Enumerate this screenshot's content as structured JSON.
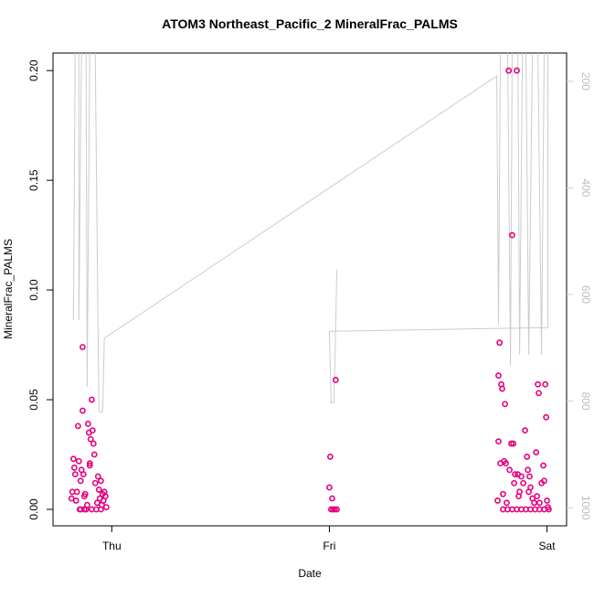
{
  "chart_data": {
    "type": "scatter",
    "title": "ATOM3 Northeast_Pacific_2 MineralFrac_PALMS",
    "xlabel": "Date",
    "ylabel": "MineralFrac_PALMS",
    "color": "#e6007e",
    "x": [
      -0.185,
      -0.181,
      -0.176,
      -0.172,
      -0.168,
      -0.164,
      -0.16,
      -0.155,
      -0.151,
      -0.147,
      -0.143,
      -0.139,
      -0.134,
      -0.134,
      -0.13,
      -0.126,
      -0.122,
      -0.118,
      -0.113,
      -0.109,
      -0.105,
      -0.101,
      -0.101,
      -0.097,
      -0.092,
      -0.088,
      -0.084,
      -0.08,
      -0.076,
      -0.071,
      -0.067,
      -0.063,
      -0.059,
      -0.055,
      -0.05,
      -0.046,
      -0.042,
      -0.038,
      -0.034,
      -0.029,
      -0.025,
      -0.143,
      -0.126,
      -0.092,
      -0.05,
      1.0,
      1.004,
      1.008,
      1.013,
      1.017,
      1.025,
      1.029,
      1.034,
      1.773,
      1.777,
      1.782,
      1.777,
      1.786,
      1.79,
      1.794,
      1.798,
      1.803,
      1.807,
      1.811,
      1.815,
      1.824,
      1.828,
      1.836,
      1.84,
      1.845,
      1.849,
      1.853,
      1.861,
      1.866,
      1.87,
      1.874,
      1.882,
      1.891,
      1.899,
      1.908,
      1.912,
      1.916,
      1.92,
      1.924,
      1.933,
      1.941,
      1.95,
      1.954,
      1.958,
      1.962,
      1.966,
      1.975,
      1.983,
      1.987,
      1.992,
      1.996,
      2.0,
      2.004,
      1.798,
      1.819,
      1.84,
      1.861,
      1.882,
      1.903,
      1.924,
      1.945,
      1.966,
      1.987,
      2.008
    ],
    "values": [
      0.005,
      0.008,
      0.023,
      0.019,
      0.016,
      0.004,
      0.008,
      0.038,
      0.022,
      0,
      0.013,
      0.018,
      0.074,
      0.045,
      0.016,
      0.006,
      0.007,
      0,
      0.002,
      0.039,
      0.035,
      0.021,
      0.02,
      0.032,
      0.05,
      0.036,
      0.03,
      0.025,
      0.012,
      0,
      0.003,
      0.015,
      0.009,
      0.005,
      0.013,
      0.002,
      0.007,
      0.004,
      0.008,
      0.006,
      0.001,
      0,
      0,
      0,
      0,
      0.01,
      0.024,
      0,
      0.005,
      0,
      0,
      0.059,
      0,
      0.004,
      0.031,
      0.076,
      0.061,
      0.021,
      0.057,
      0.055,
      0.007,
      0.022,
      0.048,
      0.021,
      0.003,
      0.2,
      0.018,
      0.03,
      0.125,
      0.03,
      0.012,
      0.016,
      0.2,
      0.016,
      0.006,
      0.008,
      0.015,
      0.012,
      0.036,
      0.024,
      0.018,
      0.008,
      0.015,
      0.01,
      0.005,
      0.003,
      0.026,
      0.006,
      0.057,
      0.053,
      0.003,
      0.012,
      0.02,
      0.013,
      0.057,
      0.042,
      0.004,
      0.001,
      0,
      0,
      0,
      0,
      0,
      0,
      0,
      0,
      0,
      0,
      0
    ],
    "xlim": [
      -0.27,
      2.09
    ],
    "xticks": [
      {
        "value": 0,
        "label": "Thu"
      },
      {
        "value": 1,
        "label": "Fri"
      },
      {
        "value": 2,
        "label": "Sat"
      }
    ],
    "ylim": [
      -0.0075,
      0.208
    ],
    "yticks": [
      {
        "value": 0,
        "label": "0.00"
      },
      0.05,
      {
        "value": 0.1,
        "label": "0.10"
      },
      0.15,
      {
        "value": 0.2,
        "label": "0.20"
      }
    ],
    "y2lim": [
      1034,
      147
    ],
    "y2ticks": [
      200,
      400,
      600,
      800,
      1000
    ],
    "line": {
      "axis": "y2",
      "color": "#cccccc",
      "x": [
        -0.176,
        -0.176,
        -0.168,
        -0.151,
        -0.151,
        -0.139,
        -0.118,
        -0.113,
        -0.101,
        -0.088,
        -0.076,
        -0.059,
        -0.042,
        -0.034,
        1.769,
        1.777,
        1.786,
        1.819,
        1.832,
        1.84,
        1.866,
        1.874,
        1.887,
        1.903,
        1.916,
        1.933,
        1.958,
        1.975,
        1.987,
        2.004,
        2.004,
        1.0,
        1.008,
        1.021,
        1.029,
        1.034
      ],
      "values": [
        605,
        648,
        140,
        140,
        648,
        140,
        140,
        773,
        140,
        140,
        140,
        820,
        820,
        682,
        190,
        657,
        140,
        140,
        734,
        140,
        140,
        713,
        140,
        140,
        713,
        140,
        140,
        713,
        140,
        140,
        662,
        669,
        803,
        803,
        669,
        554
      ]
    }
  }
}
